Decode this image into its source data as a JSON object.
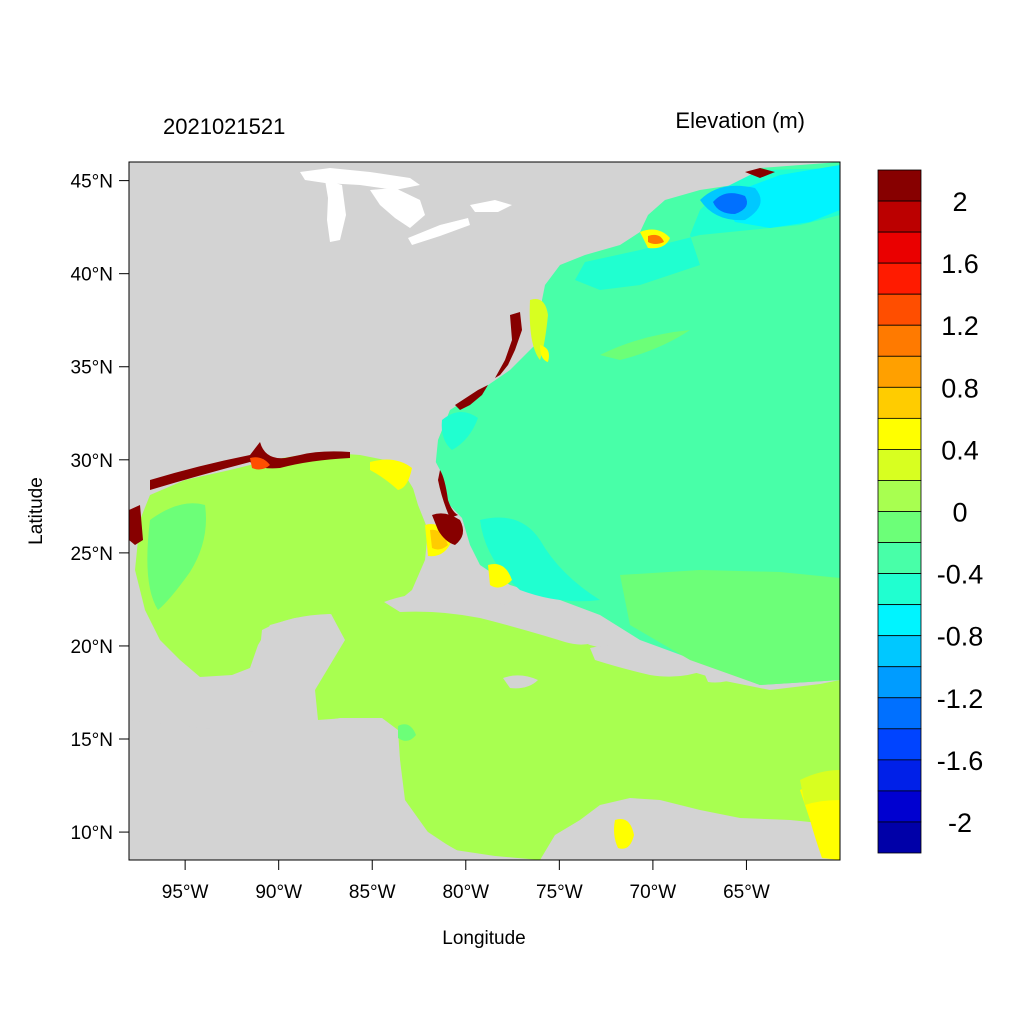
{
  "header": {
    "left_title": "2021021521",
    "right_title": "Elevation (m)"
  },
  "axes": {
    "xlabel": "Longitude",
    "ylabel": "Latitude",
    "x_ticks": [
      "95°W",
      "90°W",
      "85°W",
      "80°W",
      "75°W",
      "70°W",
      "65°W"
    ],
    "x_tick_values": [
      -95,
      -90,
      -85,
      -80,
      -75,
      -70,
      -65
    ],
    "y_ticks": [
      "45°N",
      "40°N",
      "35°N",
      "30°N",
      "25°N",
      "20°N",
      "15°N",
      "10°N"
    ],
    "y_tick_values": [
      45,
      40,
      35,
      30,
      25,
      20,
      15,
      10
    ],
    "xlim": [
      -98,
      -60
    ],
    "ylim": [
      8.5,
      46
    ]
  },
  "colorbar": {
    "labels": [
      "2",
      "1.6",
      "1.2",
      "0.8",
      "0.4",
      "0",
      "-0.4",
      "-0.8",
      "-1.2",
      "-1.6",
      "-2"
    ],
    "bins_top_to_bottom": [
      "#870000",
      "#bb0000",
      "#ea0000",
      "#ff1b00",
      "#ff4e00",
      "#ff7a00",
      "#ffa000",
      "#ffcc00",
      "#ffff00",
      "#d8ff20",
      "#a8ff50",
      "#6cff78",
      "#48ffa8",
      "#20ffd0",
      "#00f4ff",
      "#00c8ff",
      "#009cff",
      "#0070ff",
      "#0044ff",
      "#0020e8",
      "#0000d0",
      "#0000a8"
    ],
    "level_step": 0.2,
    "range": [
      -2.2,
      2.2
    ]
  },
  "colors": {
    "land": "#d3d3d3",
    "lakes": "#ffffff",
    "gulf_caribbean": "#a8ff50",
    "atlantic": "#48ffa8"
  }
}
